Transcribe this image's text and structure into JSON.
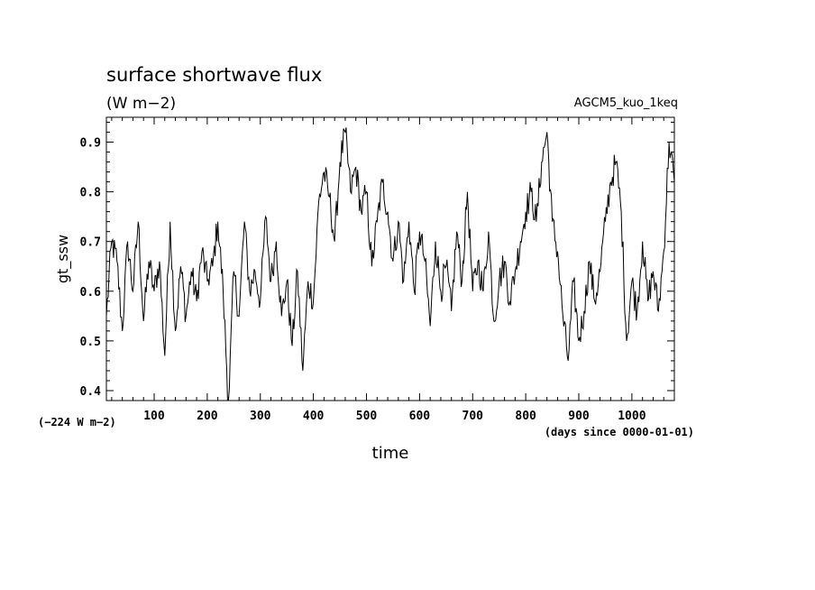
{
  "chart_data": {
    "type": "line",
    "title": "surface shortwave flux",
    "subtitle": "(W m−2)",
    "top_right_label": "AGCM5_kuo_1keq",
    "xlabel": "time",
    "ylabel": "gt_ssw",
    "x_unit_note": "(days since 0000-01-01)",
    "y_offset_note": "(−224 W m−2)",
    "xlim": [
      10,
      1080
    ],
    "ylim": [
      0.38,
      0.95
    ],
    "x_ticks": [
      100,
      200,
      300,
      400,
      500,
      600,
      700,
      800,
      900,
      1000
    ],
    "y_ticks": [
      0.4,
      0.5,
      0.6,
      0.7,
      0.8,
      0.9
    ],
    "line_color": "#000000",
    "grid": false,
    "series": [
      {
        "x": [
          10,
          20,
          30,
          40,
          50,
          60,
          70,
          80,
          90,
          100,
          110,
          120,
          130,
          140,
          150,
          160,
          170,
          180,
          190,
          200,
          210,
          220,
          230,
          240,
          250,
          260,
          270,
          280,
          290,
          300,
          310,
          320,
          330,
          340,
          350,
          360,
          370,
          380,
          390,
          400,
          410,
          420,
          430,
          440,
          450,
          460,
          470,
          480,
          490,
          500,
          510,
          520,
          530,
          540,
          550,
          560,
          570,
          580,
          590,
          600,
          610,
          620,
          630,
          640,
          650,
          660,
          670,
          680,
          690,
          700,
          710,
          720,
          730,
          740,
          750,
          760,
          770,
          780,
          790,
          800,
          810,
          820,
          830,
          840,
          850,
          860,
          870,
          880,
          890,
          900,
          910,
          920,
          930,
          940,
          950,
          960,
          970,
          980,
          990,
          1000,
          1010,
          1020,
          1030,
          1040,
          1050,
          1060,
          1070,
          1080
        ],
        "values": [
          0.55,
          0.7,
          0.66,
          0.52,
          0.7,
          0.6,
          0.74,
          0.54,
          0.66,
          0.6,
          0.66,
          0.47,
          0.74,
          0.52,
          0.65,
          0.55,
          0.64,
          0.58,
          0.68,
          0.62,
          0.65,
          0.74,
          0.6,
          0.37,
          0.64,
          0.55,
          0.74,
          0.6,
          0.64,
          0.58,
          0.75,
          0.62,
          0.7,
          0.55,
          0.62,
          0.49,
          0.64,
          0.44,
          0.62,
          0.58,
          0.78,
          0.84,
          0.79,
          0.7,
          0.86,
          0.92,
          0.8,
          0.85,
          0.76,
          0.8,
          0.65,
          0.74,
          0.82,
          0.76,
          0.66,
          0.74,
          0.62,
          0.74,
          0.6,
          0.72,
          0.66,
          0.53,
          0.7,
          0.6,
          0.65,
          0.56,
          0.72,
          0.62,
          0.8,
          0.6,
          0.66,
          0.6,
          0.72,
          0.54,
          0.62,
          0.66,
          0.58,
          0.64,
          0.7,
          0.76,
          0.8,
          0.74,
          0.86,
          0.92,
          0.74,
          0.68,
          0.55,
          0.46,
          0.62,
          0.5,
          0.56,
          0.66,
          0.58,
          0.64,
          0.74,
          0.82,
          0.86,
          0.76,
          0.5,
          0.62,
          0.56,
          0.7,
          0.58,
          0.64,
          0.56,
          0.68,
          0.9,
          0.82
        ]
      }
    ]
  }
}
